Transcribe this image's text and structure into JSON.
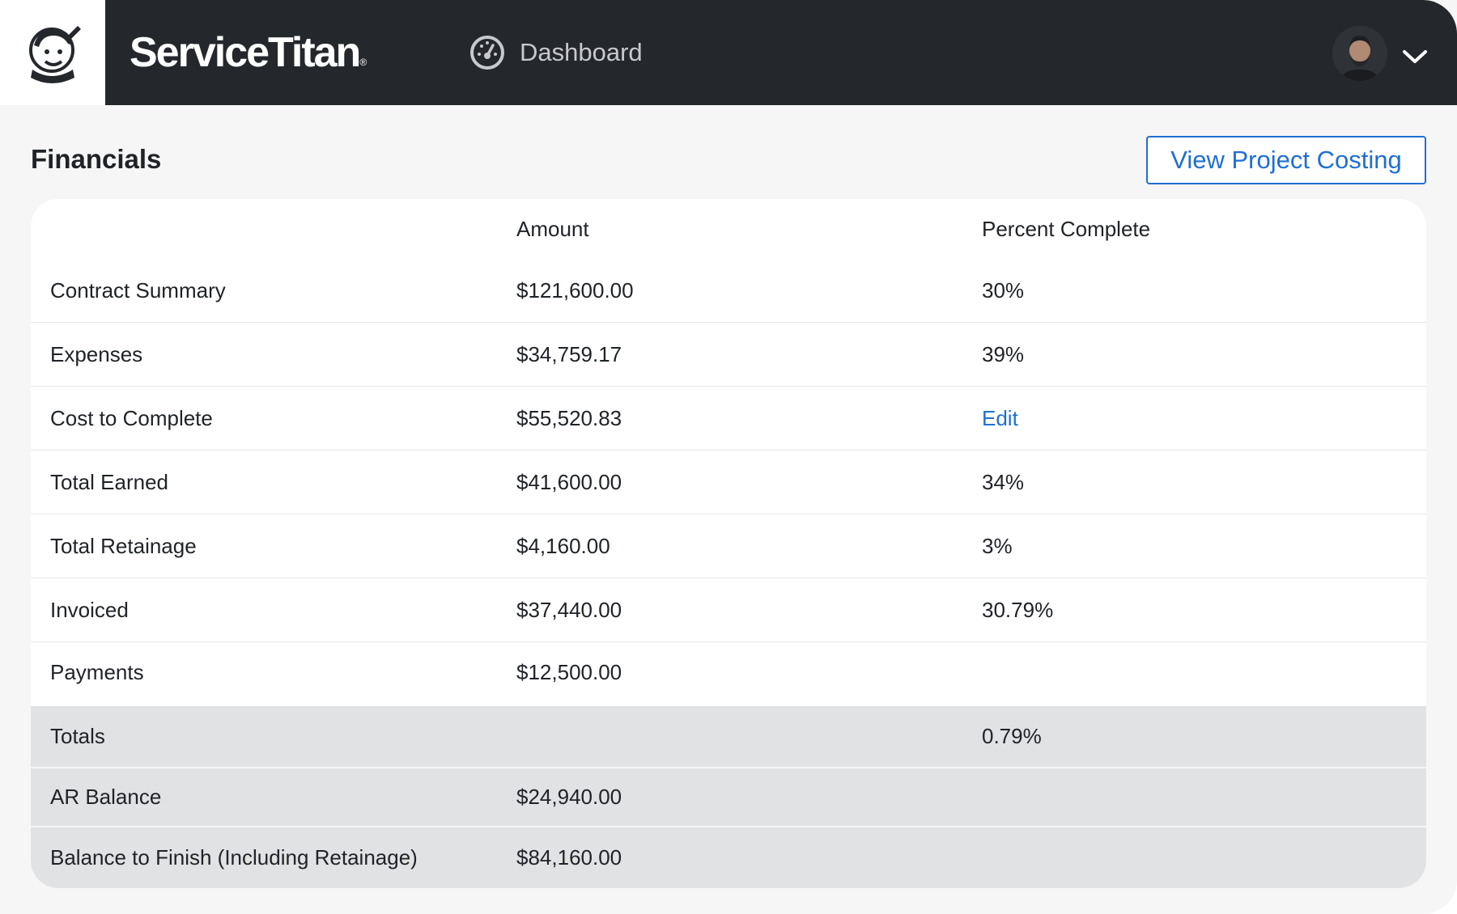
{
  "header": {
    "brand": "ServiceTitan",
    "brand_mark": "®",
    "nav": {
      "icon": "gauge-icon",
      "label": "Dashboard"
    },
    "user": {
      "avatar": "user-avatar",
      "menu_icon": "chevron-down-icon"
    }
  },
  "financials": {
    "title": "Financials",
    "action_label": "View Project Costing",
    "columns": {
      "amount": "Amount",
      "percent": "Percent Complete"
    },
    "rows": [
      {
        "label": "Contract Summary",
        "amount": "$121,600.00",
        "percent": "30%"
      },
      {
        "label": "Expenses",
        "amount": "$34,759.17",
        "percent": "39%"
      },
      {
        "label": "Cost to Complete",
        "amount": "$55,520.83",
        "percent": "Edit"
      },
      {
        "label": "Total Earned",
        "amount": "$41,600.00",
        "percent": "34%"
      },
      {
        "label": "Total Retainage",
        "amount": "$4,160.00",
        "percent": "3%"
      },
      {
        "label": "Invoiced",
        "amount": "$37,440.00",
        "percent": "30.79%"
      },
      {
        "label": "Payments",
        "amount": "$12,500.00",
        "percent": ""
      }
    ],
    "summary_rows": [
      {
        "label": "Totals",
        "amount": "",
        "percent": "0.79%"
      },
      {
        "label": "AR Balance",
        "amount": "$24,940.00",
        "percent": ""
      },
      {
        "label": "Balance to Finish (Including Retainage)",
        "amount": "$84,160.00",
        "percent": ""
      }
    ]
  },
  "colors": {
    "header_bg": "#24272c",
    "accent": "#1f6fd0",
    "summary_bg": "#e1e2e4",
    "page_bg": "#f6f6f6"
  }
}
